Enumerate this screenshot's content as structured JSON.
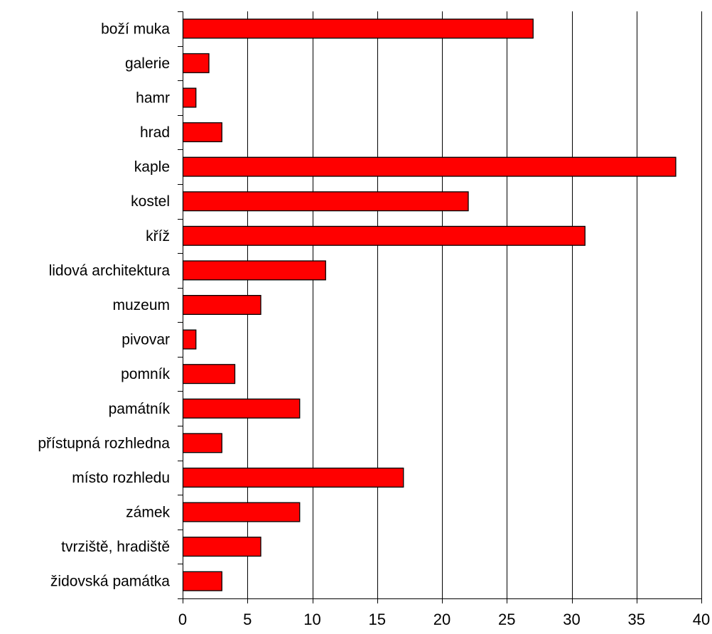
{
  "chart_data": {
    "type": "bar",
    "orientation": "horizontal",
    "title": "",
    "xlabel": "",
    "ylabel": "",
    "categories": [
      "boží muka",
      "galerie",
      "hamr",
      "hrad",
      "kaple",
      "kostel",
      "kříž",
      "lidová architektura",
      "muzeum",
      "pivovar",
      "pomník",
      "památník",
      "přístupná rozhledna",
      "místo rozhledu",
      "zámek",
      "tvrziště, hradiště",
      "židovská památka"
    ],
    "values": [
      27,
      2,
      1,
      3,
      38,
      22,
      31,
      11,
      6,
      1,
      4,
      9,
      3,
      17,
      9,
      6,
      3
    ],
    "xlim": [
      0,
      40
    ],
    "xticks": [
      0,
      5,
      10,
      15,
      20,
      25,
      30,
      35,
      40
    ],
    "xtick_labels": [
      "0",
      "5",
      "10",
      "15",
      "20",
      "25",
      "30",
      "35",
      "40"
    ],
    "grid": "vertical major gridlines",
    "legend": "none",
    "colors": {
      "bar_fill": "#ff0000",
      "bar_stroke": "#000000",
      "grid": "#000000",
      "axis": "#000000",
      "background": "#ffffff"
    }
  }
}
